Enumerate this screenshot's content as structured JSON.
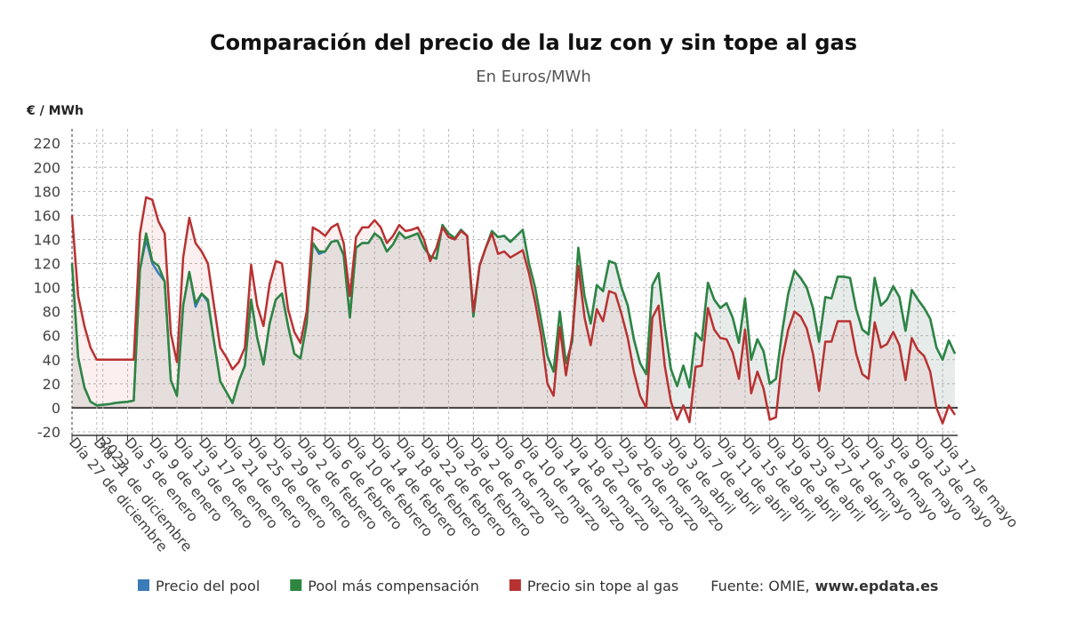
{
  "chart_data": {
    "type": "line",
    "title": "Comparación del precio de la luz con y sin tope al gas",
    "subtitle": "En Euros/MWh",
    "y_axis_label": "€ / MWh",
    "source_label": "Fuente: OMIE,",
    "source_site": "www.epdata.es",
    "categories": [
      "Día 27 de diciembre",
      null,
      null,
      null,
      "Día 31 de diciembre",
      "2023",
      null,
      null,
      null,
      "Día 5 de enero",
      null,
      null,
      null,
      "Día 9 de enero",
      null,
      null,
      null,
      "Día 13 de enero",
      null,
      null,
      null,
      "Día 17 de enero",
      null,
      null,
      null,
      "Día 21 de enero",
      null,
      null,
      null,
      "Día 25 de enero",
      null,
      null,
      null,
      "Día 29 de enero",
      null,
      null,
      null,
      "Día 2 de febrero",
      null,
      null,
      null,
      "Día 6 de febrero",
      null,
      null,
      null,
      "Día 10 de febrero",
      null,
      null,
      null,
      "Día 14 de febrero",
      null,
      null,
      null,
      "Día 18 de febrero",
      null,
      null,
      null,
      "Día 22 de febrero",
      null,
      null,
      null,
      "Día 26 de febrero",
      null,
      null,
      null,
      "Día 2 de marzo",
      null,
      null,
      null,
      "Día 6 de marzo",
      null,
      null,
      null,
      "Día 10 de marzo",
      null,
      null,
      null,
      "Día 14 de marzo",
      null,
      null,
      null,
      "Día 18 de marzo",
      null,
      null,
      null,
      "Día 22 de marzo",
      null,
      null,
      null,
      "Día 26 de marzo",
      null,
      null,
      null,
      "Día 30 de marzo",
      null,
      null,
      null,
      "Día 3 de abril",
      null,
      null,
      null,
      "Día 7 de abril",
      null,
      null,
      null,
      "Día 11 de abril",
      null,
      null,
      null,
      "Día 15 de abril",
      null,
      null,
      null,
      "Día 19 de abril",
      null,
      null,
      null,
      "Día 23 de abril",
      null,
      null,
      null,
      "Día 27 de abril",
      null,
      null,
      null,
      "Día 1 de mayo",
      null,
      null,
      null,
      "Día 5 de mayo",
      null,
      null,
      null,
      "Día 9 de mayo",
      null,
      null,
      null,
      "Día 13 de mayo",
      null,
      null,
      null,
      "Día 17 de mayo",
      null,
      null
    ],
    "series": [
      {
        "name": "Precio del pool",
        "color": "#3a7bb8",
        "values": [
          120,
          42,
          17,
          5,
          2,
          2.5,
          3,
          4,
          4.5,
          5,
          6,
          115,
          140,
          120,
          112,
          105,
          23,
          10,
          85,
          113,
          84,
          95,
          88,
          55,
          22,
          13,
          4,
          22,
          35,
          90,
          58,
          36,
          70,
          90,
          95,
          68,
          45,
          41,
          70,
          137,
          128,
          130,
          138,
          139,
          127,
          75,
          133,
          137,
          137,
          145,
          141,
          130,
          136,
          146,
          141,
          143,
          145,
          133,
          126,
          124,
          152,
          145,
          141,
          148,
          143,
          76,
          118,
          133,
          147,
          142,
          143,
          138,
          143,
          148,
          120,
          100,
          72,
          43,
          30,
          80,
          37,
          55,
          133,
          93,
          70,
          102,
          97,
          122,
          120,
          100,
          85,
          57,
          37,
          28,
          102,
          112,
          68,
          32,
          18,
          35,
          17,
          62,
          56,
          104,
          90,
          83,
          87,
          75,
          54,
          91,
          40,
          57,
          47,
          20,
          24,
          63,
          95,
          114,
          108,
          100,
          83,
          55,
          92,
          91,
          109,
          109,
          108,
          82,
          65,
          61,
          108,
          85,
          90,
          101,
          92,
          64,
          98,
          90,
          83,
          74,
          50,
          40,
          56,
          45
        ]
      },
      {
        "name": "Pool más compensación",
        "color": "#2e8540",
        "values": [
          120,
          42,
          17,
          5,
          2,
          2.5,
          3,
          4,
          4.5,
          5,
          6,
          115,
          145,
          122,
          118,
          105,
          23,
          10,
          85,
          113,
          87,
          95,
          90,
          55,
          22,
          13,
          4,
          22,
          35,
          90,
          58,
          36,
          70,
          90,
          95,
          68,
          45,
          41,
          70,
          137,
          130,
          130,
          138,
          139,
          127,
          75,
          133,
          137,
          137,
          145,
          141,
          130,
          136,
          146,
          141,
          143,
          145,
          133,
          126,
          124,
          152,
          145,
          141,
          148,
          143,
          76,
          118,
          133,
          147,
          142,
          143,
          138,
          143,
          148,
          120,
          100,
          72,
          43,
          30,
          80,
          37,
          55,
          133,
          93,
          70,
          102,
          97,
          122,
          120,
          100,
          85,
          57,
          37,
          28,
          102,
          112,
          68,
          32,
          18,
          35,
          17,
          62,
          56,
          104,
          90,
          83,
          87,
          75,
          54,
          91,
          40,
          57,
          47,
          20,
          24,
          63,
          95,
          114,
          108,
          100,
          83,
          55,
          92,
          91,
          109,
          109,
          108,
          82,
          65,
          61,
          108,
          85,
          90,
          101,
          92,
          64,
          98,
          90,
          83,
          74,
          50,
          40,
          56,
          45
        ]
      },
      {
        "name": "Precio sin tope al gas",
        "color": "#b83232",
        "values": [
          160,
          93,
          68,
          50,
          40,
          40,
          40,
          40,
          40,
          40,
          40,
          145,
          175,
          173,
          155,
          145,
          62,
          38,
          125,
          158,
          137,
          130,
          120,
          85,
          50,
          42,
          32,
          38,
          50,
          119,
          85,
          68,
          103,
          122,
          120,
          82,
          63,
          54,
          80,
          150,
          147,
          143,
          150,
          153,
          137,
          93,
          142,
          150,
          150,
          156,
          150,
          137,
          143,
          152,
          147,
          148,
          150,
          140,
          122,
          133,
          150,
          142,
          140,
          147,
          143,
          80,
          118,
          133,
          145,
          128,
          130,
          125,
          128,
          131,
          112,
          88,
          60,
          20,
          10,
          67,
          27,
          60,
          118,
          75,
          52,
          82,
          72,
          97,
          95,
          78,
          58,
          30,
          10,
          0,
          75,
          85,
          35,
          5,
          -10,
          2,
          -12,
          34,
          35,
          83,
          65,
          58,
          57,
          46,
          24,
          65,
          12,
          30,
          16,
          -10,
          -8,
          40,
          65,
          80,
          76,
          66,
          45,
          14,
          55,
          55,
          72,
          72,
          72,
          45,
          28,
          24,
          71,
          50,
          53,
          63,
          52,
          23,
          58,
          48,
          43,
          30,
          0,
          -13,
          2,
          -6
        ]
      }
    ],
    "ylim": [
      -23,
      232
    ],
    "yticks": [
      -20,
      0,
      20,
      40,
      60,
      80,
      100,
      120,
      140,
      160,
      180,
      200,
      220
    ],
    "grid": true
  }
}
